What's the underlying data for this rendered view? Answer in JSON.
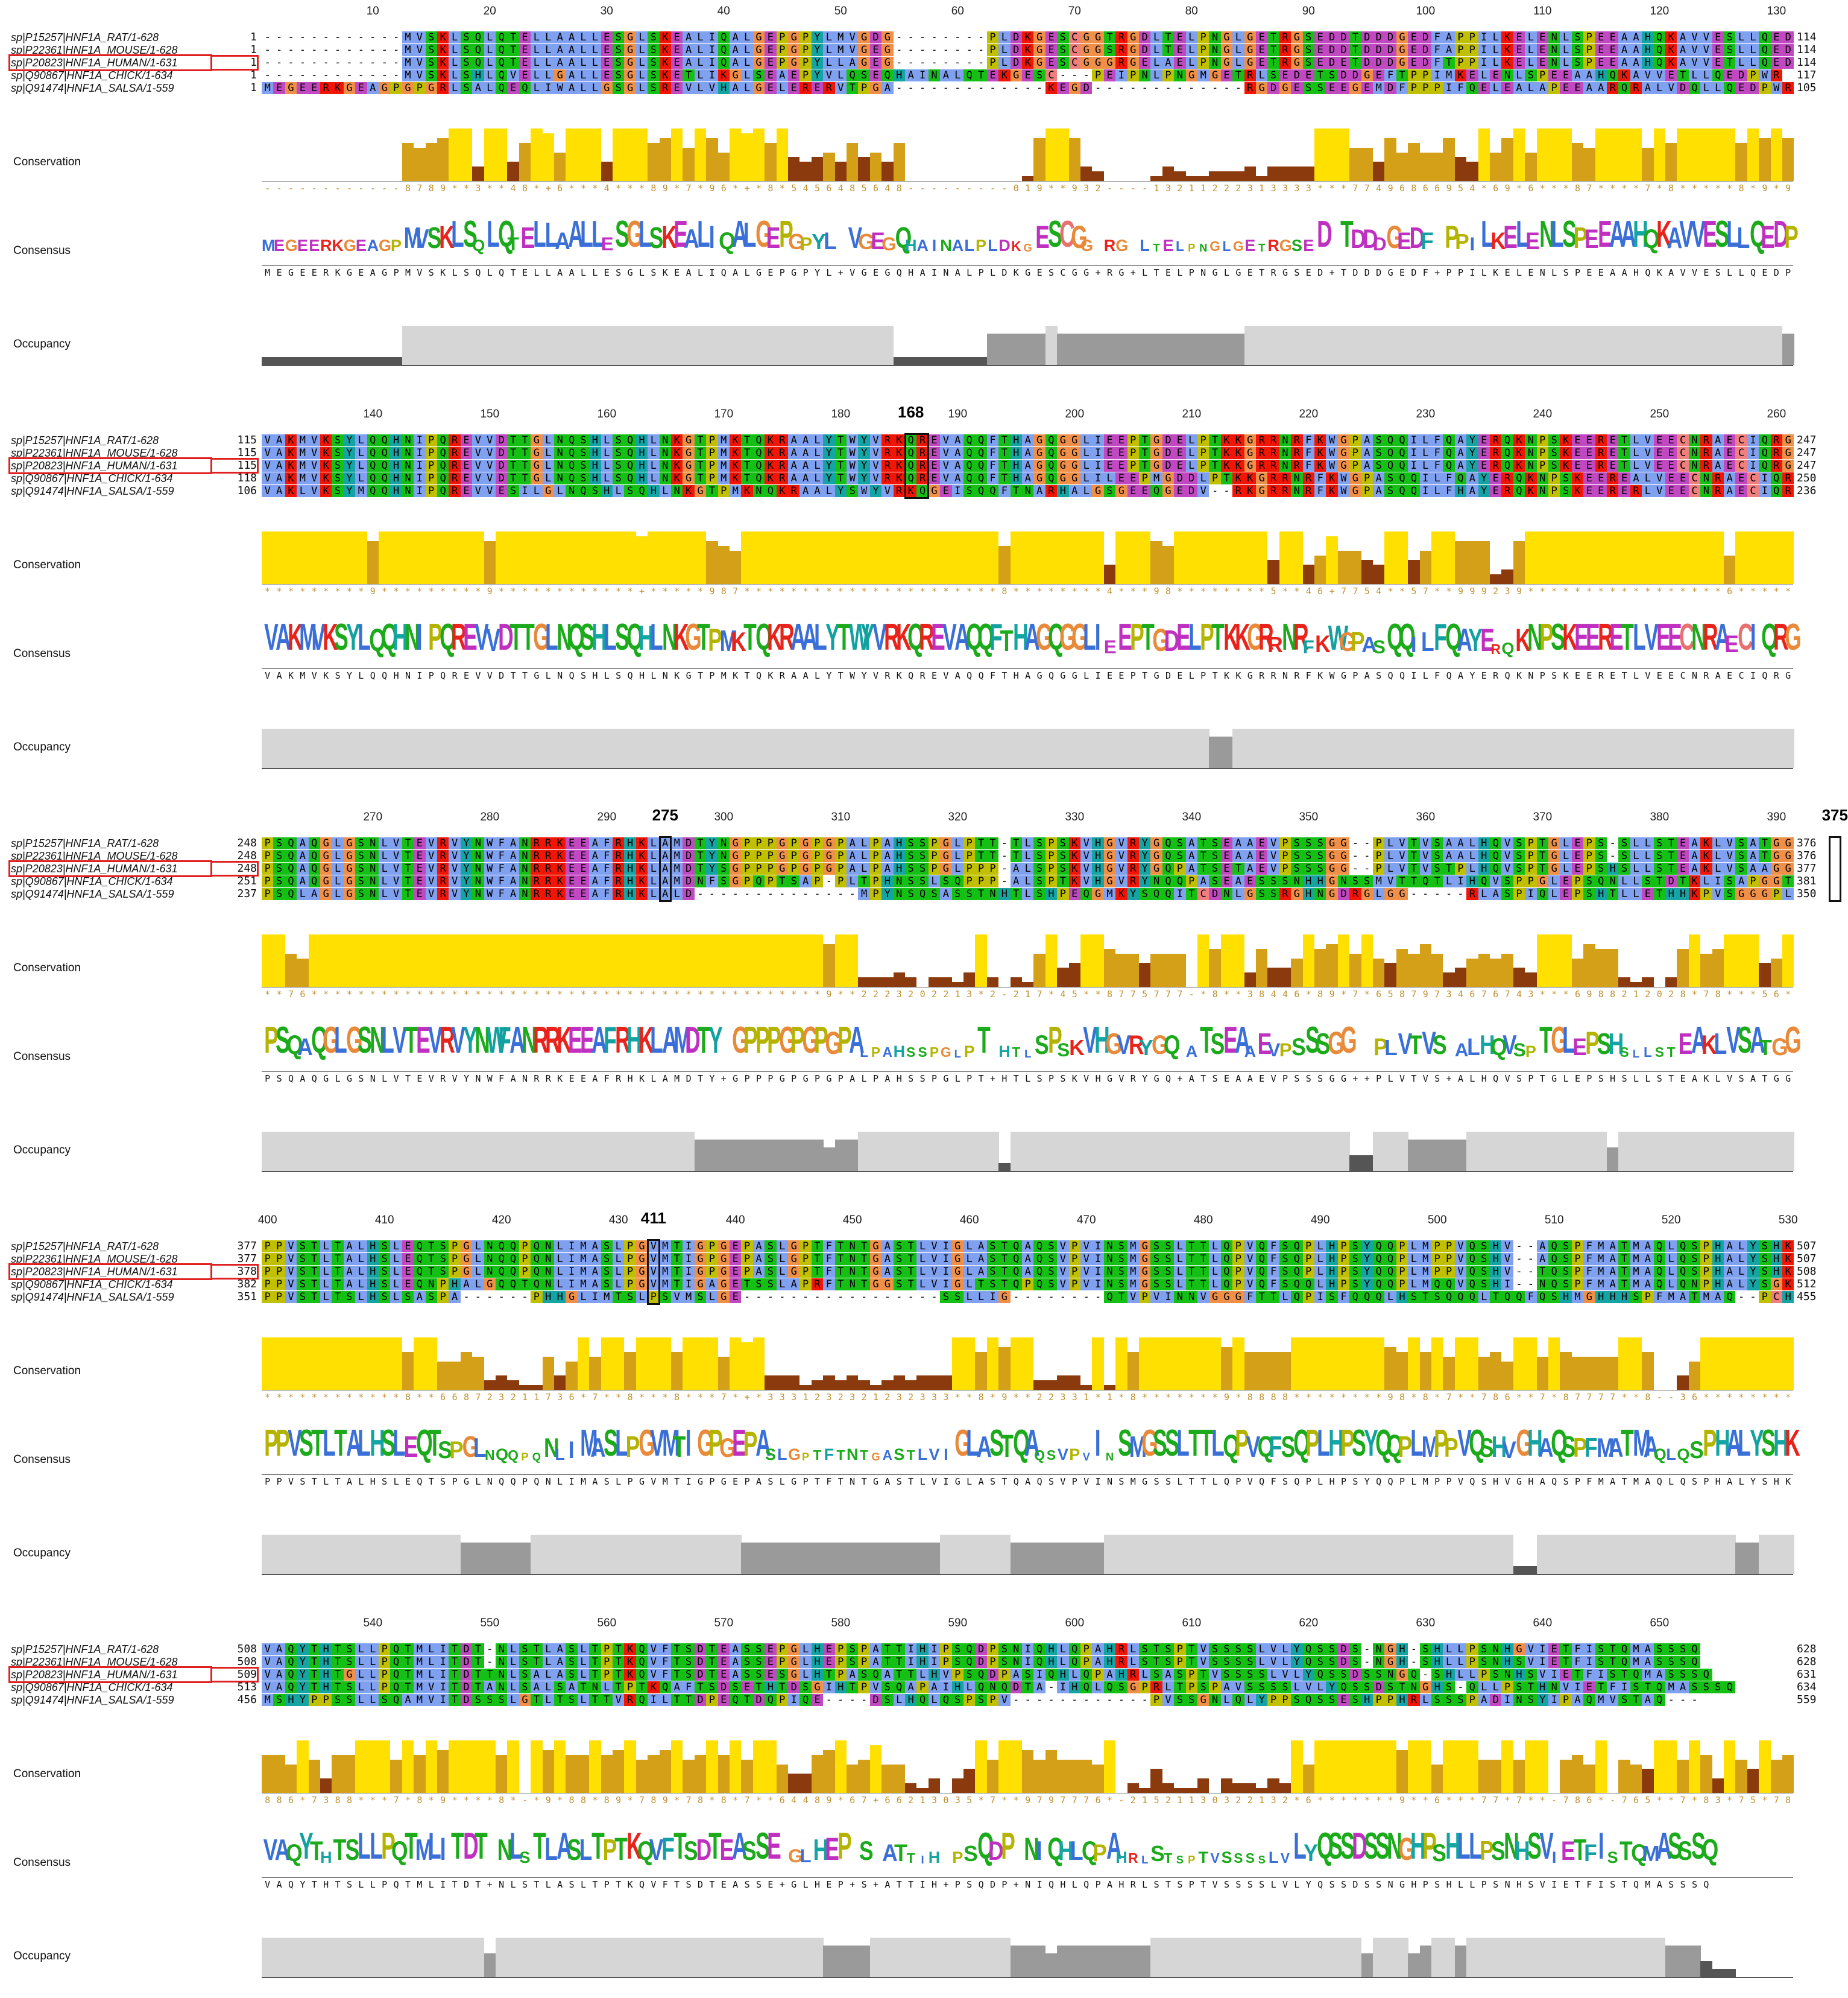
{
  "labels": {
    "conservation": "Conservation",
    "consensus": "Consensus",
    "occupancy": "Occupancy"
  },
  "colors": {
    "hydrophobic": "#80a0f0",
    "positive": "#f01505",
    "negative": "#c048c0",
    "polar": "#15c015",
    "cysteine": "#f08080",
    "glycine": "#f09048",
    "proline": "#c0c000",
    "aromatic": "#15a4a4",
    "cons_high": "#ffe000",
    "cons_mid": "#d4a017",
    "cons_low": "#8b3a0e",
    "occ_full": "#d6d6d6",
    "occ_part": "#9a9a9a",
    "occ_low": "#555555",
    "highlight_box": "#e02020"
  },
  "sequence_names": [
    "sp|P15257|HNF1A_RAT/1-628",
    "sp|P22361|HNF1A_MOUSE/1-628",
    "sp|P20823|HNF1A_HUMAN/1-631",
    "sp|Q90867|HNF1A_CHICK/1-634",
    "sp|Q91474|HNF1A_SALSA/1-559"
  ],
  "highlighted_sequence": "sp|P20823|HNF1A_HUMAN/1-631",
  "blocks": [
    {
      "ruler": [
        {
          "label": "10",
          "col": 9
        },
        {
          "label": "20",
          "col": 19
        },
        {
          "label": "30",
          "col": 29
        },
        {
          "label": "40",
          "col": 39
        },
        {
          "label": "50",
          "col": 49
        },
        {
          "label": "60",
          "col": 59
        },
        {
          "label": "70",
          "col": 69
        },
        {
          "label": "80",
          "col": 79
        },
        {
          "label": "90",
          "col": 89
        },
        {
          "label": "100",
          "col": 99
        },
        {
          "label": "110",
          "col": 109
        },
        {
          "label": "120",
          "col": 119
        },
        {
          "label": "130",
          "col": 129
        }
      ],
      "markers": [],
      "rows": [
        {
          "name": "sp|P15257|HNF1A_RAT/1-628",
          "start": "1",
          "end": "114",
          "seq": "------------MVSKLSQLQTELLAALLESGLSKEALIQALGEPGPYLMVGDG--------PLDKGESCGGTRGDLTELPNGLGETRGSEDDTDDDGEDFAPPILKELENLSPEEAAHQKAVVESLLQEDPWR"
        },
        {
          "name": "sp|P22361|HNF1A_MOUSE/1-628",
          "start": "1",
          "end": "114",
          "seq": "------------MVSKLSQLQTELLAALLESGLSKEALIQALGEPGPYLMVGEG--------PLDKGESCGGSRGDLTELPNGLGETRGSEDDTDDDGEDFAPPILKELENLSPEEAAHQKAVVESLLQEDPWR"
        },
        {
          "name": "sp|P20823|HNF1A_HUMAN/1-631",
          "start": "1",
          "end": "114",
          "seq": "------------MVSKLSQLQTELLAALLESGLSKEALIQALGEPGPYLLAGEG--------PLDKGESCGGGRGELAELPNGLGETRGSEDETDDDGEDFTPPILKELENLSPEEAAHQKAVVETLLQEDPWR"
        },
        {
          "name": "sp|Q90867|HNF1A_CHICK/1-634",
          "start": "1",
          "end": "117",
          "seq": "------------MVSKLSHLQVELLGALLESGLSKETLIKGLSEAEPYVLQSEQHAINALQTEKGESC---PEIPNLPNGMGETRLSEDETSDDGEFTPPIMKELENLSPEEAAHQKAVVETLLQEDPWR"
        },
        {
          "name": "sp|Q91474|HNF1A_SALSA/1-559",
          "start": "1",
          "end": "105",
          "seq": "MEGEERKGEAGPGPGRLSALQEQLIWALLGSGLSREVLVHALGELERERVTPGA-------------KEGD-------------RGDGESSEEGEMDFPPPIFQELEALAPEEAARQRALVDQLLQEDPWR"
        }
      ],
      "conservation_digits": "------------8789  3  48 +6   4   89 7 96 + 8 5456485648---------019  932----13211222313333   77496866954 69 6   87    7 8     8 9 95  ",
      "consensus_line": "MEGEERKGEAGPMVSKLSQLQTELLAALLESGLSKEALIQALGEPGPYL+VGEGQHAINALPLDKGESCGG+RG+LTELPNGLGETRGSED+TDDDGEDF+PPILKELENLSPEEAAHQKAVVESLLQEDPWR"
    },
    {
      "ruler": [
        {
          "label": "140",
          "col": 9
        },
        {
          "label": "150",
          "col": 19
        },
        {
          "label": "160",
          "col": 29
        },
        {
          "label": "170",
          "col": 39
        },
        {
          "label": "180",
          "col": 49
        },
        {
          "label": "168",
          "col": 55,
          "highlight": true
        },
        {
          "label": "190",
          "col": 59
        },
        {
          "label": "200",
          "col": 69
        },
        {
          "label": "210",
          "col": 79
        },
        {
          "label": "220",
          "col": 89
        },
        {
          "label": "230",
          "col": 99
        },
        {
          "label": "240",
          "col": 109
        },
        {
          "label": "250",
          "col": 119
        },
        {
          "label": "260",
          "col": 129
        }
      ],
      "markers": [
        {
          "col": 55,
          "width": 2
        }
      ],
      "rows": [
        {
          "name": "sp|P15257|HNF1A_RAT/1-628",
          "start": "115",
          "end": "247",
          "seq": "VAKMVKSYLQQHNIPQREVVDTTGLNQSHLSQHLNKGTPMKTQKRAALYTWYVRKQREVAQQFTHAGQGGLIEEPTGDELPTKKGRRNRFKWGPASQQILFQAYERQKNPSKEERETLVEECNRAECIQRGVS"
        },
        {
          "name": "sp|P22361|HNF1A_MOUSE/1-628",
          "start": "115",
          "end": "247",
          "seq": "VAKMVKSYLQQHNIPQREVVDTTGLNQSHLSQHLNKGTPMKTQKRAALYTWYVRKQREVAQQFTHAGQGGLIEEPTGDELPTKKGRRNRFKWGPASQQILFQAYERQKNPSKEERETLVEECNRAECIQRGVS"
        },
        {
          "name": "sp|P20823|HNF1A_HUMAN/1-631",
          "start": "115",
          "end": "247",
          "seq": "VAKMVKSYLQQHNIPQREVVDTTGLNQSHLSQHLNKGTPMKTQKRAALYTWYVRKQREVAQQFTHAGQGGLIEEPTGDELPTKKGRRNRFKWGPASQQILFQAYERQKNPSKEERETLVEECNRAECIQRGVS"
        },
        {
          "name": "sp|Q90867|HNF1A_CHICK/1-634",
          "start": "118",
          "end": "250",
          "seq": "VAKMVKSYLQQHNIPQREVVDTTGLNQSHLSQHLNKGTPMKTQKRAALYTWYVRKQREVAQQFTHAGQGGLILEEPMGDDLPTKKGRRNRFKWGPASQQILFQAYERQKNPSKEEREALVEECNRAECIQRGVS"
        },
        {
          "name": "sp|Q91474|HNF1A_SALSA/1-559",
          "start": "106",
          "end": "236",
          "seq": "VAKLVKSYMQQHNIPQREVVESILGLNQSHLSQHLNKGTPMKNQKRAALYSWYVRKQGEISQQFTNARHALGSGEEQGEDV--RKGRRNRFKWGPASQQILFHAYERQKNPSKEERERLVEECNRAECIQRGVS"
        }
      ],
      "conservation_digits": "         9         9            +     987                      8        4   98        5  46+7754  57  999239                 6           9                 8           +     ",
      "consensus_line": "VAKMVKSYLQQHNIPQREVVDTTGLNQSHLSQHLNKGTPMKTQKRAALYTWYVRKQREVAQQFTHAGQGGLIEEPTGDELPTKKGRRNRFKWGPASQQILFQAYERQKNPSKEERETLVEECNRAECIQRGVS"
    },
    {
      "ruler": [
        {
          "label": "270",
          "col": 9
        },
        {
          "label": "280",
          "col": 19
        },
        {
          "label": "290",
          "col": 29
        },
        {
          "label": "275",
          "col": 34,
          "highlight": true
        },
        {
          "label": "300",
          "col": 39
        },
        {
          "label": "310",
          "col": 49
        },
        {
          "label": "320",
          "col": 59
        },
        {
          "label": "330",
          "col": 69
        },
        {
          "label": "340",
          "col": 79
        },
        {
          "label": "350",
          "col": 89
        },
        {
          "label": "360",
          "col": 99
        },
        {
          "label": "370",
          "col": 109
        },
        {
          "label": "380",
          "col": 119
        },
        {
          "label": "390",
          "col": 129
        },
        {
          "label": "375",
          "col": 134,
          "highlight": true
        }
      ],
      "markers": [
        {
          "col": 34,
          "width": 1
        },
        {
          "col": 134,
          "width": 1
        }
      ],
      "rows": [
        {
          "name": "sp|P15257|HNF1A_RAT/1-628",
          "start": "248",
          "end": "376",
          "seq": "PSQAQGLGSNLVTEVRVYNWFANRRKEEAFRHKLAMDTYNGPPPGPGPGPALPAHSSPGLPTT-TLSPSKVHGVRYGQSATSEAAEVPSSSGG--PLVTVSAALHQVSPTGLEPS-SLLSTEAKLVSATGGPL"
        },
        {
          "name": "sp|P22361|HNF1A_MOUSE/1-628",
          "start": "248",
          "end": "376",
          "seq": "PSQAQGLGSNLVTEVRVYNWFANRRKEEAFRHKLAMDTYNGPPPGPGPGPALPAHSSPGLPTT-TLSPSKVHGVRYGQSATSEAAEVPSSSGG--PLVTVSAALHQVSPTGLEPS-SLLSTEAKLVSATGGPL"
        },
        {
          "name": "sp|P20823|HNF1A_HUMAN/1-631",
          "start": "248",
          "end": "377",
          "seq": "PSQAQGLGSNLVTEVRVYNWFANRRKEEAFRHKLAMDTYSGPPPGPGPGPALPAHSSPGLPPP-ALSPSKVHGVRYGQPATSETAEVPSSSGG--PLVTVSTPLHQVSPTGLEPSHSLLSTEAKLVSAAGGPL"
        },
        {
          "name": "sp|Q90867|HNF1A_CHICK/1-634",
          "start": "251",
          "end": "381",
          "seq": "PSQAQGLGSNLVTEVRVYNWFANRRKEEAFRHKLAMDNFSGPQPTSAP-PLTPHNSSLSQPPP-ALSPTKVHGVRYNQQPASEAESSSNHHGNSSMVTTQTLIHQVSPPGLEPSQNLLSTDTKLISAPGGTL"
        },
        {
          "name": "sp|Q91474|HNF1A_SALSA/1-559",
          "start": "237",
          "end": "350",
          "seq": "PSQLAGLGSNLVTEVRVYNWFANRRKEEAFRHKLALD--------------MPYNSQSASSTNHTLSHPEQGMKYSQQITCDNLGSSRGHNGDRGLGG-----RLASPIQLEPSHTLLETHHKPVSGGGPL"
        }
      ],
      "conservation_digits": "  76                                            9  2223202213 2-217 45  8775777- 8  38446 89 7 65879734676743   6988212028 78   56      8   6 54966686   7 ",
      "consensus_line": "PSQAQGLGSNLVTEVRVYNWFANRRKEEAFRHKLAMDTY+GPPPGPGPGPALPAHSSPGLPT+HTLSPSKVHGVRYGQ+ATSEAAEVPSSSGG++PLVTVS+ALHQVSPTGLEPSHSLLSTEAKLVSATGGPL"
    },
    {
      "ruler": [
        {
          "label": "400",
          "col": 0
        },
        {
          "label": "410",
          "col": 10
        },
        {
          "label": "420",
          "col": 20
        },
        {
          "label": "430",
          "col": 30
        },
        {
          "label": "411",
          "col": 33,
          "highlight": true
        },
        {
          "label": "440",
          "col": 40
        },
        {
          "label": "450",
          "col": 50
        },
        {
          "label": "460",
          "col": 60
        },
        {
          "label": "470",
          "col": 70
        },
        {
          "label": "480",
          "col": 80
        },
        {
          "label": "490",
          "col": 90
        },
        {
          "label": "500",
          "col": 100
        },
        {
          "label": "510",
          "col": 110
        },
        {
          "label": "520",
          "col": 120
        },
        {
          "label": "530",
          "col": 130
        }
      ],
      "markers": [
        {
          "col": 33,
          "width": 1
        }
      ],
      "rows": [
        {
          "name": "sp|P15257|HNF1A_RAT/1-628",
          "start": "377",
          "end": "507",
          "seq": "PPVSTLTALHSLEQTSPGLNQQPQNLIMASLPGVMTIGPGEPASLGPTFTNTGASTLVIGLASTQAQSVPVINSMGSSLTTLQPVQFSQPLHPSYQQPLMPPVQSHV--AQSPFMATMAQLQSPHALYSHKPE"
        },
        {
          "name": "sp|P22361|HNF1A_MOUSE/1-628",
          "start": "377",
          "end": "507",
          "seq": "PPVSTLTALHSLEQTSPGLNQQPQNLIMASLPGVMTIGPGEPASLGPTFTNTGASTLVIGLASTQAQSVPVINSMGSSLTTLQPVQFSQPLHPSYQQPLMPPVQSHV--AQSPFMATMAQLQSPHALYSHKPE"
        },
        {
          "name": "sp|P20823|HNF1A_HUMAN/1-631",
          "start": "378",
          "end": "508",
          "seq": "PPVSTLTALHSLEQTSPGLNQQPQNLIMASLPGVMTIGPGEPASLGPTFTNTGASTLVIGLASTQAQSVPVINSMGSSLTTLQPVQFSQPLHPSYQQPLMPPVQSHV--TQSPFMATMAQLQSPHALYSHKPE"
        },
        {
          "name": "sp|Q90867|HNF1A_CHICK/1-634",
          "start": "382",
          "end": "512",
          "seq": "PPVSTLTALHSLEQNPHALGQQTQNLIMASLPGVMTIGAGETSSLAPRFTNTGGSTLVIGLTSTQPQSVPVINSMGSSLTTLQPVQFSQQLHPSYQQPLMQQVQSHI--NQSPFMATMAQLQNPHALYSGKPE"
        },
        {
          "name": "sp|Q91474|HNF1A_SALSA/1-559",
          "start": "351",
          "end": "455",
          "seq": "PPVSTLTSLHSLSASPA------PHHGLIMTSLPSVMSLGE-----------------SSLLIG--------QTVPVINNVGGGFTTLQPISFQQQLHSTSQQQLTQQFQSHMGHHHSPFMATMAQ--PCHMYS-KSD"
        }
      ],
      "conservation_digits": "            8  668723211736 7  8   8   7 + 3331232321232333  8 9  22331 1 8       9 8888        98 8 7  786  7 87777  8--36          12 549 80 79",
      "consensus_line": "PPVSTLTALHSLEQTSPGLNQQPQNLIMASLPGVMTIGPGEPASLGPTFTNTGASTLVIGLASTQAQSVPVINSMGSSLTTLQPVQFSQPLHPSYQQPLMPPVQSHVGHAQSPFMATMAQLQSPHALYSHKPE"
    },
    {
      "ruler": [
        {
          "label": "540",
          "col": 9
        },
        {
          "label": "550",
          "col": 19
        },
        {
          "label": "560",
          "col": 29
        },
        {
          "label": "570",
          "col": 39
        },
        {
          "label": "580",
          "col": 49
        },
        {
          "label": "590",
          "col": 59
        },
        {
          "label": "600",
          "col": 69
        },
        {
          "label": "610",
          "col": 79
        },
        {
          "label": "620",
          "col": 89
        },
        {
          "label": "630",
          "col": 99
        },
        {
          "label": "640",
          "col": 109
        },
        {
          "label": "650",
          "col": 119
        }
      ],
      "markers": [],
      "rows": [
        {
          "name": "sp|P15257|HNF1A_RAT/1-628",
          "start": "508",
          "end": "628",
          "seq": "VAQYTHTSLLPQTMLITDT-NLSTLASLTPTKQVFTSDTEASSEPGLHEPSPATTIHIPSQDPSNIQHLQPAHRLSTSPTVSSSSLVLYQSSDS-NGH-SHLLPSNHGVIETFISTQMASSSQ"
        },
        {
          "name": "sp|P22361|HNF1A_MOUSE/1-628",
          "start": "508",
          "end": "628",
          "seq": "VAQYTHTSLLPQTMLITDT-NLSTLASLTPTKQVFTSDTEASSEPGLHEPSPATTIHIPSQDPSNIQHLQPAHRLSTSPTVSSSSLVLYQSSDS-NGH-SHLLPSNHSVIETFISTQMASSSQ"
        },
        {
          "name": "sp|P20823|HNF1A_HUMAN/1-631",
          "start": "509",
          "end": "631",
          "seq": "VAQYTHTGLLPQTMLITDTTNLSALASLTPTKQVFTSDTEASSESGLHTPASQATTLHVPSQDPASIQHLQPAHRLSASPTVSSSSLVLYQSSDSSNGQ-SHLLPSNHSVIETFISTQMASSSQ"
        },
        {
          "name": "sp|Q90867|HNF1A_CHICK/1-634",
          "start": "513",
          "end": "634",
          "seq": "VAQYTHTSLLPQTMVITDTANLSALSATNLTPTKQAFTSDSETHTDSGIHTPVSQAPAIHLQNQDTA-IHQLQSGPRLTPSPAVSSSSLVLYQSSDSTNGHS-QLLPSTHNVIETFISTQMASSSQ"
        },
        {
          "name": "sp|Q91474|HNF1A_SALSA/1-559",
          "start": "456",
          "end": "559",
          "seq": "MSHYPPSSLLSQAMVITDSSSLGTLTSLTTVRQILTTDPEQTDQPIQE----DSLHQLQSPSPV------------PVSSGNLQLYPPSQSSESHPPHRLSSSPADINSYIPAQMVSTAQ---"
        }
      ],
      "conservation_digits": "886 7388   7 8 9    8 - 9 88 89 789 78 8 7  64489 67+66213035 7  9797776 -21521130322132 6       9  6   77 7  -786 -765  7 83 75 789 78  8 87 ",
      "consensus_line": "VAQYTHTSLLPQTMLITDT+NLSTLASLTPTKQVFTSDTEASSE+GLHEP+S+ATTIH+PSQDP+NIQHLQPAHRLSTSPTVSSSSLVLYQSSDSSNGHPSHLLPSNHSVIETFISTQMASSSQ"
    }
  ]
}
